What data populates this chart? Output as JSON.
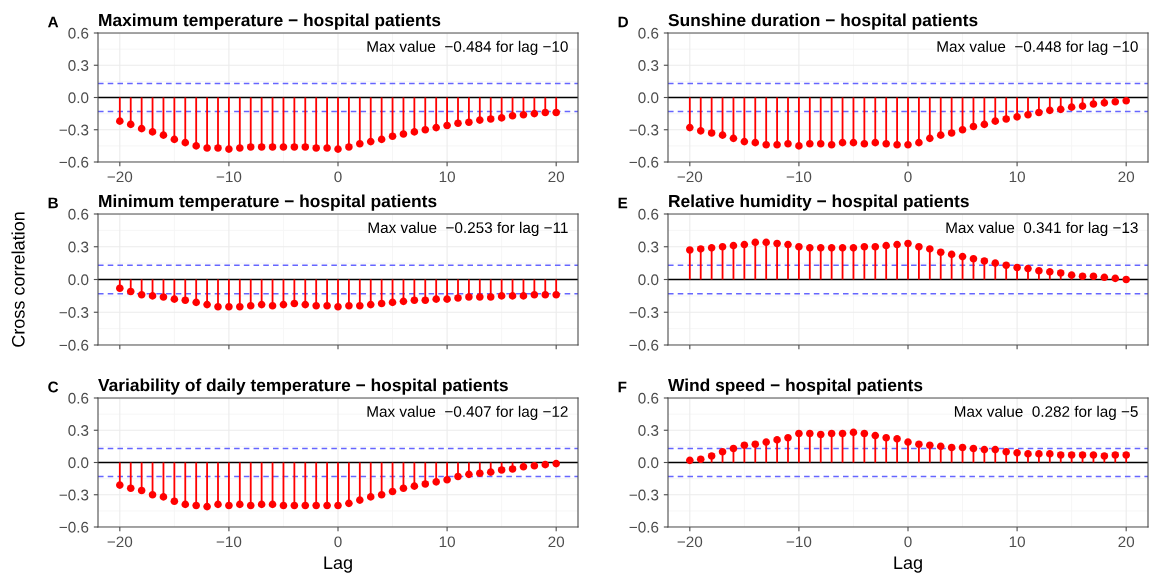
{
  "chart_data": [
    {
      "type": "lollipop",
      "title": "Maximum temperature − hospital patients",
      "annotations": [
        "A",
        "Max value  −0.484 for lag −10"
      ],
      "x": [
        -20,
        -19,
        -18,
        -17,
        -16,
        -15,
        -14,
        -13,
        -12,
        -11,
        -10,
        -9,
        -8,
        -7,
        -6,
        -5,
        -4,
        -3,
        -2,
        -1,
        0,
        1,
        2,
        3,
        4,
        5,
        6,
        7,
        8,
        9,
        10,
        11,
        12,
        13,
        14,
        15,
        16,
        17,
        18,
        19,
        20
      ],
      "series": [
        {
          "color": "#ff0000",
          "values": [
            -0.22,
            -0.25,
            -0.29,
            -0.32,
            -0.35,
            -0.39,
            -0.42,
            -0.45,
            -0.47,
            -0.47,
            -0.48,
            -0.47,
            -0.46,
            -0.46,
            -0.46,
            -0.46,
            -0.46,
            -0.46,
            -0.47,
            -0.47,
            -0.48,
            -0.46,
            -0.43,
            -0.41,
            -0.39,
            -0.36,
            -0.34,
            -0.32,
            -0.3,
            -0.28,
            -0.26,
            -0.24,
            -0.23,
            -0.21,
            -0.2,
            -0.19,
            -0.17,
            -0.16,
            -0.15,
            -0.14,
            -0.14
          ]
        }
      ],
      "xlim": [
        -22,
        22
      ],
      "ylim": [
        -0.6,
        0.6
      ],
      "xticks": [
        {
          "value": -20,
          "label": "−20"
        },
        {
          "value": -10,
          "label": "−10"
        },
        {
          "value": 0,
          "label": "0"
        },
        {
          "value": 10,
          "label": "10"
        },
        {
          "value": 20,
          "label": "20"
        }
      ],
      "yticks": [
        {
          "value": -0.6,
          "label": "−0.6"
        },
        {
          "value": -0.3,
          "label": "−0.3"
        },
        {
          "value": 0,
          "label": "0.0"
        },
        {
          "value": 0.3,
          "label": "0.3"
        },
        {
          "value": 0.6,
          "label": "0.6"
        }
      ],
      "ref_lines": [
        {
          "axis": "y",
          "value": 0,
          "color": "#000000",
          "line_style": "solid"
        },
        {
          "axis": "y",
          "value": 0.13,
          "color": "#6666ff",
          "line_style": "dashed"
        },
        {
          "axis": "y",
          "value": -0.13,
          "color": "#6666ff",
          "line_style": "dashed"
        }
      ],
      "grid": true,
      "marker": "circle"
    },
    {
      "type": "lollipop",
      "title": "Minimum temperature − hospital patients",
      "ylabel": "Cross correlation",
      "annotations": [
        "B",
        "Max value  −0.253 for lag −11"
      ],
      "x": [
        -20,
        -19,
        -18,
        -17,
        -16,
        -15,
        -14,
        -13,
        -12,
        -11,
        -10,
        -9,
        -8,
        -7,
        -6,
        -5,
        -4,
        -3,
        -2,
        -1,
        0,
        1,
        2,
        3,
        4,
        5,
        6,
        7,
        8,
        9,
        10,
        11,
        12,
        13,
        14,
        15,
        16,
        17,
        18,
        19,
        20
      ],
      "series": [
        {
          "color": "#ff0000",
          "values": [
            -0.08,
            -0.11,
            -0.14,
            -0.15,
            -0.16,
            -0.18,
            -0.19,
            -0.21,
            -0.23,
            -0.25,
            -0.25,
            -0.25,
            -0.24,
            -0.23,
            -0.24,
            -0.23,
            -0.22,
            -0.23,
            -0.24,
            -0.24,
            -0.25,
            -0.24,
            -0.24,
            -0.23,
            -0.22,
            -0.21,
            -0.2,
            -0.19,
            -0.19,
            -0.18,
            -0.18,
            -0.17,
            -0.16,
            -0.16,
            -0.16,
            -0.15,
            -0.15,
            -0.15,
            -0.14,
            -0.14,
            -0.14
          ]
        }
      ],
      "xlim": [
        -22,
        22
      ],
      "ylim": [
        -0.6,
        0.6
      ],
      "xticks": [
        -20,
        -10,
        0,
        10,
        20
      ],
      "yticks": [
        {
          "value": -0.6,
          "label": "−0.6"
        },
        {
          "value": -0.3,
          "label": "−0.3"
        },
        {
          "value": 0,
          "label": "0.0"
        },
        {
          "value": 0.3,
          "label": "0.3"
        },
        {
          "value": 0.6,
          "label": "0.6"
        }
      ],
      "ref_lines": [
        {
          "axis": "y",
          "value": 0,
          "color": "#000000",
          "line_style": "solid"
        },
        {
          "axis": "y",
          "value": 0.13,
          "color": "#6666ff",
          "line_style": "dashed"
        },
        {
          "axis": "y",
          "value": -0.13,
          "color": "#6666ff",
          "line_style": "dashed"
        }
      ],
      "grid": true,
      "marker": "circle",
      "tick_labels": "y"
    },
    {
      "type": "lollipop",
      "title": "Variability of daily temperature − hospital patients",
      "xlabel": "Lag",
      "annotations": [
        "C",
        "Max value  −0.407 for lag −12"
      ],
      "x": [
        -20,
        -19,
        -18,
        -17,
        -16,
        -15,
        -14,
        -13,
        -12,
        -11,
        -10,
        -9,
        -8,
        -7,
        -6,
        -5,
        -4,
        -3,
        -2,
        -1,
        0,
        1,
        2,
        3,
        4,
        5,
        6,
        7,
        8,
        9,
        10,
        11,
        12,
        13,
        14,
        15,
        16,
        17,
        18,
        19,
        20
      ],
      "series": [
        {
          "color": "#ff0000",
          "values": [
            -0.21,
            -0.24,
            -0.26,
            -0.3,
            -0.32,
            -0.36,
            -0.39,
            -0.4,
            -0.41,
            -0.39,
            -0.4,
            -0.39,
            -0.4,
            -0.39,
            -0.39,
            -0.4,
            -0.4,
            -0.4,
            -0.4,
            -0.4,
            -0.4,
            -0.38,
            -0.35,
            -0.32,
            -0.3,
            -0.27,
            -0.24,
            -0.22,
            -0.2,
            -0.18,
            -0.16,
            -0.13,
            -0.11,
            -0.1,
            -0.09,
            -0.07,
            -0.06,
            -0.04,
            -0.03,
            -0.02,
            -0.01
          ]
        }
      ],
      "xlim": [
        -22,
        22
      ],
      "ylim": [
        -0.6,
        0.6
      ],
      "xticks": [
        {
          "value": -20,
          "label": "−20"
        },
        {
          "value": -10,
          "label": "−10"
        },
        {
          "value": 0,
          "label": "0"
        },
        {
          "value": 10,
          "label": "10"
        },
        {
          "value": 20,
          "label": "20"
        }
      ],
      "yticks": [
        {
          "value": -0.6,
          "label": "−0.6"
        },
        {
          "value": -0.3,
          "label": "−0.3"
        },
        {
          "value": 0,
          "label": "0.0"
        },
        {
          "value": 0.3,
          "label": "0.3"
        },
        {
          "value": 0.6,
          "label": "0.6"
        }
      ],
      "ref_lines": [
        {
          "axis": "y",
          "value": 0,
          "color": "#000000",
          "line_style": "solid"
        },
        {
          "axis": "y",
          "value": 0.13,
          "color": "#6666ff",
          "line_style": "dashed"
        },
        {
          "axis": "y",
          "value": -0.13,
          "color": "#6666ff",
          "line_style": "dashed"
        }
      ],
      "grid": true,
      "marker": "circle"
    },
    {
      "type": "lollipop",
      "title": "Sunshine duration − hospital patients",
      "annotations": [
        "D",
        "Max value  −0.448 for lag −10"
      ],
      "x": [
        -20,
        -19,
        -18,
        -17,
        -16,
        -15,
        -14,
        -13,
        -12,
        -11,
        -10,
        -9,
        -8,
        -7,
        -6,
        -5,
        -4,
        -3,
        -2,
        -1,
        0,
        1,
        2,
        3,
        4,
        5,
        6,
        7,
        8,
        9,
        10,
        11,
        12,
        13,
        14,
        15,
        16,
        17,
        18,
        19,
        20
      ],
      "series": [
        {
          "color": "#ff0000",
          "values": [
            -0.28,
            -0.31,
            -0.33,
            -0.35,
            -0.38,
            -0.41,
            -0.42,
            -0.44,
            -0.44,
            -0.43,
            -0.45,
            -0.43,
            -0.43,
            -0.44,
            -0.42,
            -0.42,
            -0.43,
            -0.42,
            -0.43,
            -0.44,
            -0.44,
            -0.42,
            -0.38,
            -0.35,
            -0.33,
            -0.3,
            -0.27,
            -0.25,
            -0.22,
            -0.2,
            -0.18,
            -0.16,
            -0.14,
            -0.12,
            -0.11,
            -0.09,
            -0.08,
            -0.06,
            -0.05,
            -0.04,
            -0.03
          ]
        }
      ],
      "xlim": [
        -22,
        22
      ],
      "ylim": [
        -0.6,
        0.6
      ],
      "xticks": [
        {
          "value": -20,
          "label": "−20"
        },
        {
          "value": -10,
          "label": "−10"
        },
        {
          "value": 0,
          "label": "0"
        },
        {
          "value": 10,
          "label": "10"
        },
        {
          "value": 20,
          "label": "20"
        }
      ],
      "yticks": [
        {
          "value": -0.6,
          "label": "−0.6"
        },
        {
          "value": -0.3,
          "label": "−0.3"
        },
        {
          "value": 0,
          "label": "0.0"
        },
        {
          "value": 0.3,
          "label": "0.3"
        },
        {
          "value": 0.6,
          "label": "0.6"
        }
      ],
      "ref_lines": [
        {
          "axis": "y",
          "value": 0,
          "color": "#000000",
          "line_style": "solid"
        },
        {
          "axis": "y",
          "value": 0.13,
          "color": "#6666ff",
          "line_style": "dashed"
        },
        {
          "axis": "y",
          "value": -0.13,
          "color": "#6666ff",
          "line_style": "dashed"
        }
      ],
      "grid": true,
      "marker": "circle"
    },
    {
      "type": "lollipop",
      "title": "Relative humidity − hospital patients",
      "annotations": [
        "E",
        "Max value  0.341 for lag −13"
      ],
      "x": [
        -20,
        -19,
        -18,
        -17,
        -16,
        -15,
        -14,
        -13,
        -12,
        -11,
        -10,
        -9,
        -8,
        -7,
        -6,
        -5,
        -4,
        -3,
        -2,
        -1,
        0,
        1,
        2,
        3,
        4,
        5,
        6,
        7,
        8,
        9,
        10,
        11,
        12,
        13,
        14,
        15,
        16,
        17,
        18,
        19,
        20
      ],
      "series": [
        {
          "color": "#ff0000",
          "values": [
            0.27,
            0.28,
            0.29,
            0.3,
            0.31,
            0.32,
            0.34,
            0.34,
            0.33,
            0.32,
            0.3,
            0.29,
            0.29,
            0.29,
            0.29,
            0.29,
            0.3,
            0.3,
            0.31,
            0.32,
            0.33,
            0.3,
            0.28,
            0.25,
            0.23,
            0.21,
            0.19,
            0.17,
            0.15,
            0.13,
            0.11,
            0.1,
            0.08,
            0.07,
            0.06,
            0.04,
            0.03,
            0.03,
            0.02,
            0.01,
            0.0
          ]
        }
      ],
      "xlim": [
        -22,
        22
      ],
      "ylim": [
        -0.6,
        0.6
      ],
      "xticks": [
        -20,
        -10,
        0,
        10,
        20
      ],
      "yticks": [
        {
          "value": -0.6,
          "label": "−0.6"
        },
        {
          "value": -0.3,
          "label": "−0.3"
        },
        {
          "value": 0,
          "label": "0.0"
        },
        {
          "value": 0.3,
          "label": "0.3"
        },
        {
          "value": 0.6,
          "label": "0.6"
        }
      ],
      "ref_lines": [
        {
          "axis": "y",
          "value": 0,
          "color": "#000000",
          "line_style": "solid"
        },
        {
          "axis": "y",
          "value": 0.13,
          "color": "#6666ff",
          "line_style": "dashed"
        },
        {
          "axis": "y",
          "value": -0.13,
          "color": "#6666ff",
          "line_style": "dashed"
        }
      ],
      "grid": true,
      "marker": "circle",
      "tick_labels": "y"
    },
    {
      "type": "lollipop",
      "title": "Wind speed − hospital patients",
      "xlabel": "Lag",
      "annotations": [
        "F",
        "Max value  0.282 for lag −5"
      ],
      "x": [
        -20,
        -19,
        -18,
        -17,
        -16,
        -15,
        -14,
        -13,
        -12,
        -11,
        -10,
        -9,
        -8,
        -7,
        -6,
        -5,
        -4,
        -3,
        -2,
        -1,
        0,
        1,
        2,
        3,
        4,
        5,
        6,
        7,
        8,
        9,
        10,
        11,
        12,
        13,
        14,
        15,
        16,
        17,
        18,
        19,
        20
      ],
      "series": [
        {
          "color": "#ff0000",
          "values": [
            0.02,
            0.03,
            0.06,
            0.1,
            0.13,
            0.16,
            0.17,
            0.19,
            0.21,
            0.23,
            0.27,
            0.27,
            0.26,
            0.27,
            0.27,
            0.28,
            0.27,
            0.25,
            0.23,
            0.22,
            0.19,
            0.17,
            0.16,
            0.15,
            0.14,
            0.14,
            0.13,
            0.12,
            0.12,
            0.1,
            0.09,
            0.08,
            0.08,
            0.08,
            0.07,
            0.07,
            0.07,
            0.07,
            0.06,
            0.07,
            0.07
          ]
        }
      ],
      "xlim": [
        -22,
        22
      ],
      "ylim": [
        -0.6,
        0.6
      ],
      "xticks": [
        {
          "value": -20,
          "label": "−20"
        },
        {
          "value": -10,
          "label": "−10"
        },
        {
          "value": 0,
          "label": "0"
        },
        {
          "value": 10,
          "label": "10"
        },
        {
          "value": 20,
          "label": "20"
        }
      ],
      "yticks": [
        {
          "value": -0.6,
          "label": "−0.6"
        },
        {
          "value": -0.3,
          "label": "−0.3"
        },
        {
          "value": 0,
          "label": "0.0"
        },
        {
          "value": 0.3,
          "label": "0.3"
        },
        {
          "value": 0.6,
          "label": "0.6"
        }
      ],
      "ref_lines": [
        {
          "axis": "y",
          "value": 0,
          "color": "#000000",
          "line_style": "solid"
        },
        {
          "axis": "y",
          "value": 0.13,
          "color": "#6666ff",
          "line_style": "dashed"
        },
        {
          "axis": "y",
          "value": -0.13,
          "color": "#6666ff",
          "line_style": "dashed"
        }
      ],
      "grid": true,
      "marker": "circle"
    }
  ]
}
